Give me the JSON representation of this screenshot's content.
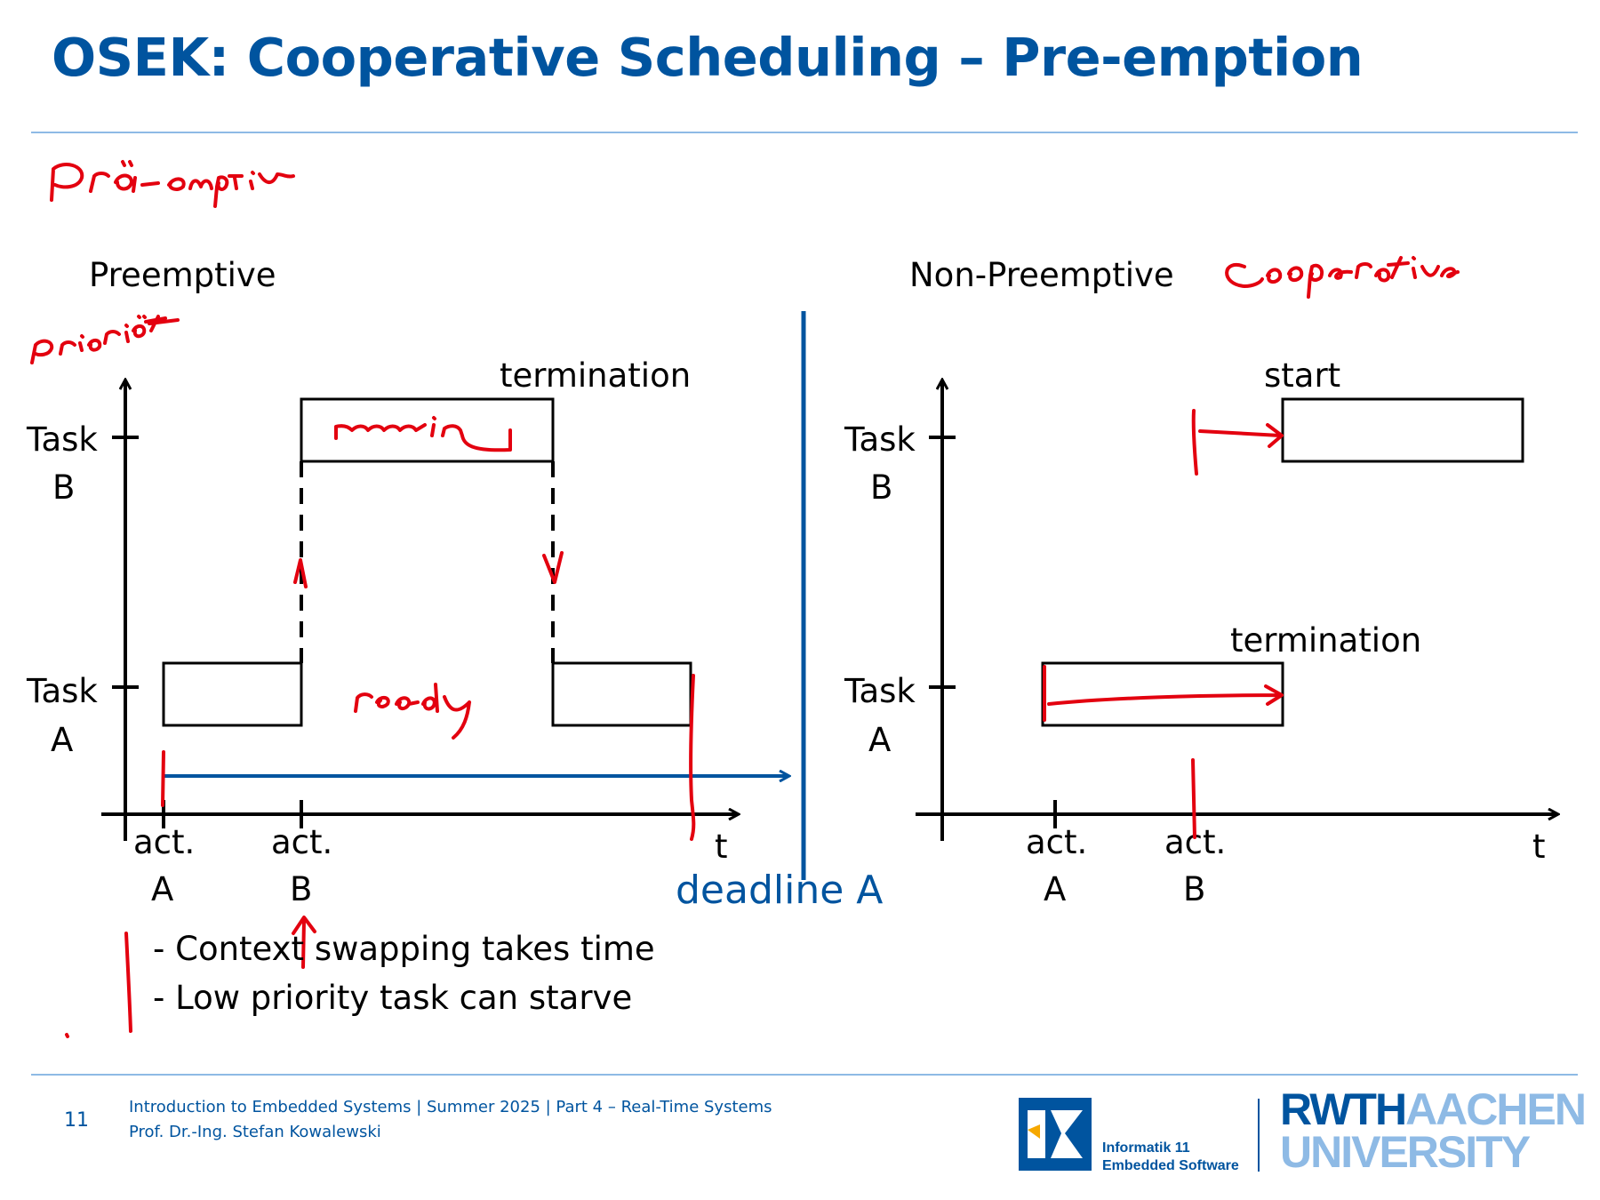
{
  "title": "OSEK: Cooperative Scheduling – Pre-emption",
  "left_diagram": {
    "heading": "Preemptive",
    "task_b_label": [
      "Task",
      "B"
    ],
    "task_a_label": [
      "Task",
      "A"
    ],
    "termination_label": "termination",
    "time_label": "t",
    "activation_a": [
      "act.",
      "A"
    ],
    "activation_b": [
      "act.",
      "B"
    ],
    "deadline_label": "deadline A"
  },
  "right_diagram": {
    "heading": "Non-Preemptive",
    "task_b_label": [
      "Task",
      "B"
    ],
    "task_a_label": [
      "Task",
      "A"
    ],
    "start_label": "start",
    "termination_label": "termination",
    "time_label": "t",
    "activation_a": [
      "act.",
      "A"
    ],
    "activation_b": [
      "act.",
      "B"
    ]
  },
  "bullets": [
    "- Context swapping takes time",
    "- Low priority task can starve"
  ],
  "handwritten": {
    "note_praemptiv": "Prä-emptiv",
    "note_prioritaet": "Priorität",
    "note_cooperative": "Cooperative",
    "note_running": "running",
    "note_ready": "ready"
  },
  "footer": {
    "page_number": "11",
    "line1": "Introduction to Embedded Systems | Summer 2025 | Part 4 – Real-Time Systems",
    "line2": "Prof. Dr.-Ing. Stefan Kowalewski"
  },
  "logos": {
    "institute_line1": "Informatik 11",
    "institute_line2": "Embedded Software",
    "university_part1": "RWTH",
    "university_part2": "AACHEN",
    "university_part3": "UNIVERSITY"
  },
  "colors": {
    "brand_blue": "#00549f",
    "light_blue": "#8ebae5",
    "ink_red": "#e3000f"
  }
}
